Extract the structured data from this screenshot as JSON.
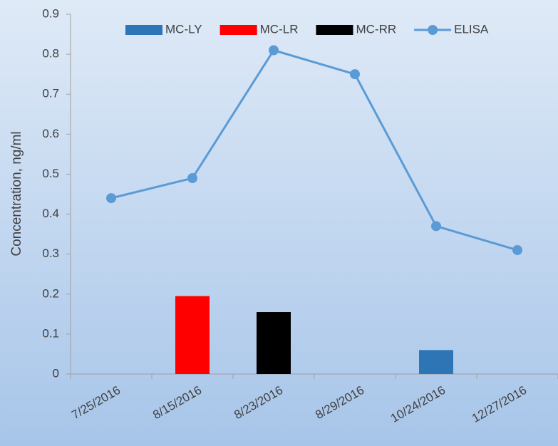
{
  "chart_data": {
    "type": "bar-line",
    "y_label": "Concentration, ng/ml",
    "categories": [
      "7/25/2016",
      "8/15/2016",
      "8/23/2016",
      "8/29/2016",
      "10/24/2016",
      "12/27/2016"
    ],
    "series": [
      {
        "name": "MC-LY",
        "type": "bar",
        "color": "#2e75b6",
        "values": [
          null,
          null,
          null,
          null,
          0.06,
          null
        ]
      },
      {
        "name": "MC-LR",
        "type": "bar",
        "color": "#ff0000",
        "values": [
          null,
          0.195,
          null,
          null,
          null,
          null
        ]
      },
      {
        "name": "MC-RR",
        "type": "bar",
        "color": "#000000",
        "values": [
          null,
          null,
          0.155,
          null,
          null,
          null
        ]
      },
      {
        "name": "ELISA",
        "type": "line",
        "color": "#5b9bd5",
        "values": [
          0.44,
          0.49,
          0.81,
          0.75,
          0.37,
          0.31
        ]
      }
    ],
    "ylim": [
      0,
      0.9
    ],
    "yticks": [
      0,
      0.1,
      0.2,
      0.3,
      0.4,
      0.5,
      0.6,
      0.7,
      0.8,
      0.9
    ],
    "grid": false,
    "legend": "top"
  }
}
